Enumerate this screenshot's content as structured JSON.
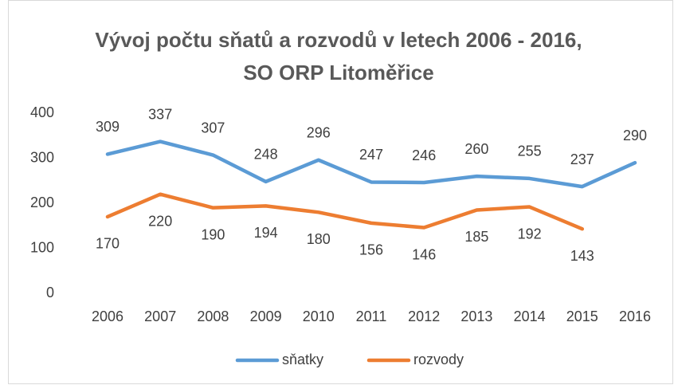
{
  "chart_data": {
    "type": "line",
    "title": [
      "Vývoj počtu sňatů a rozvodů v letech 2006 - 2016,",
      "SO ORP Litoměřice"
    ],
    "categories": [
      "2006",
      "2007",
      "2008",
      "2009",
      "2010",
      "2011",
      "2012",
      "2013",
      "2014",
      "2015",
      "2016"
    ],
    "series": [
      {
        "name": "sňatky",
        "color": "#5b9bd5",
        "values": [
          309,
          337,
          307,
          248,
          296,
          247,
          246,
          260,
          255,
          237,
          290
        ],
        "label_position": "above"
      },
      {
        "name": "rozvody",
        "color": "#ed7d31",
        "values": [
          170,
          220,
          190,
          194,
          180,
          156,
          146,
          185,
          192,
          143,
          null
        ],
        "label_position": "below"
      }
    ],
    "ylim": [
      0,
      400
    ],
    "yticks": [
      0,
      100,
      200,
      300,
      400
    ],
    "grid": false,
    "legend": "bottom"
  }
}
